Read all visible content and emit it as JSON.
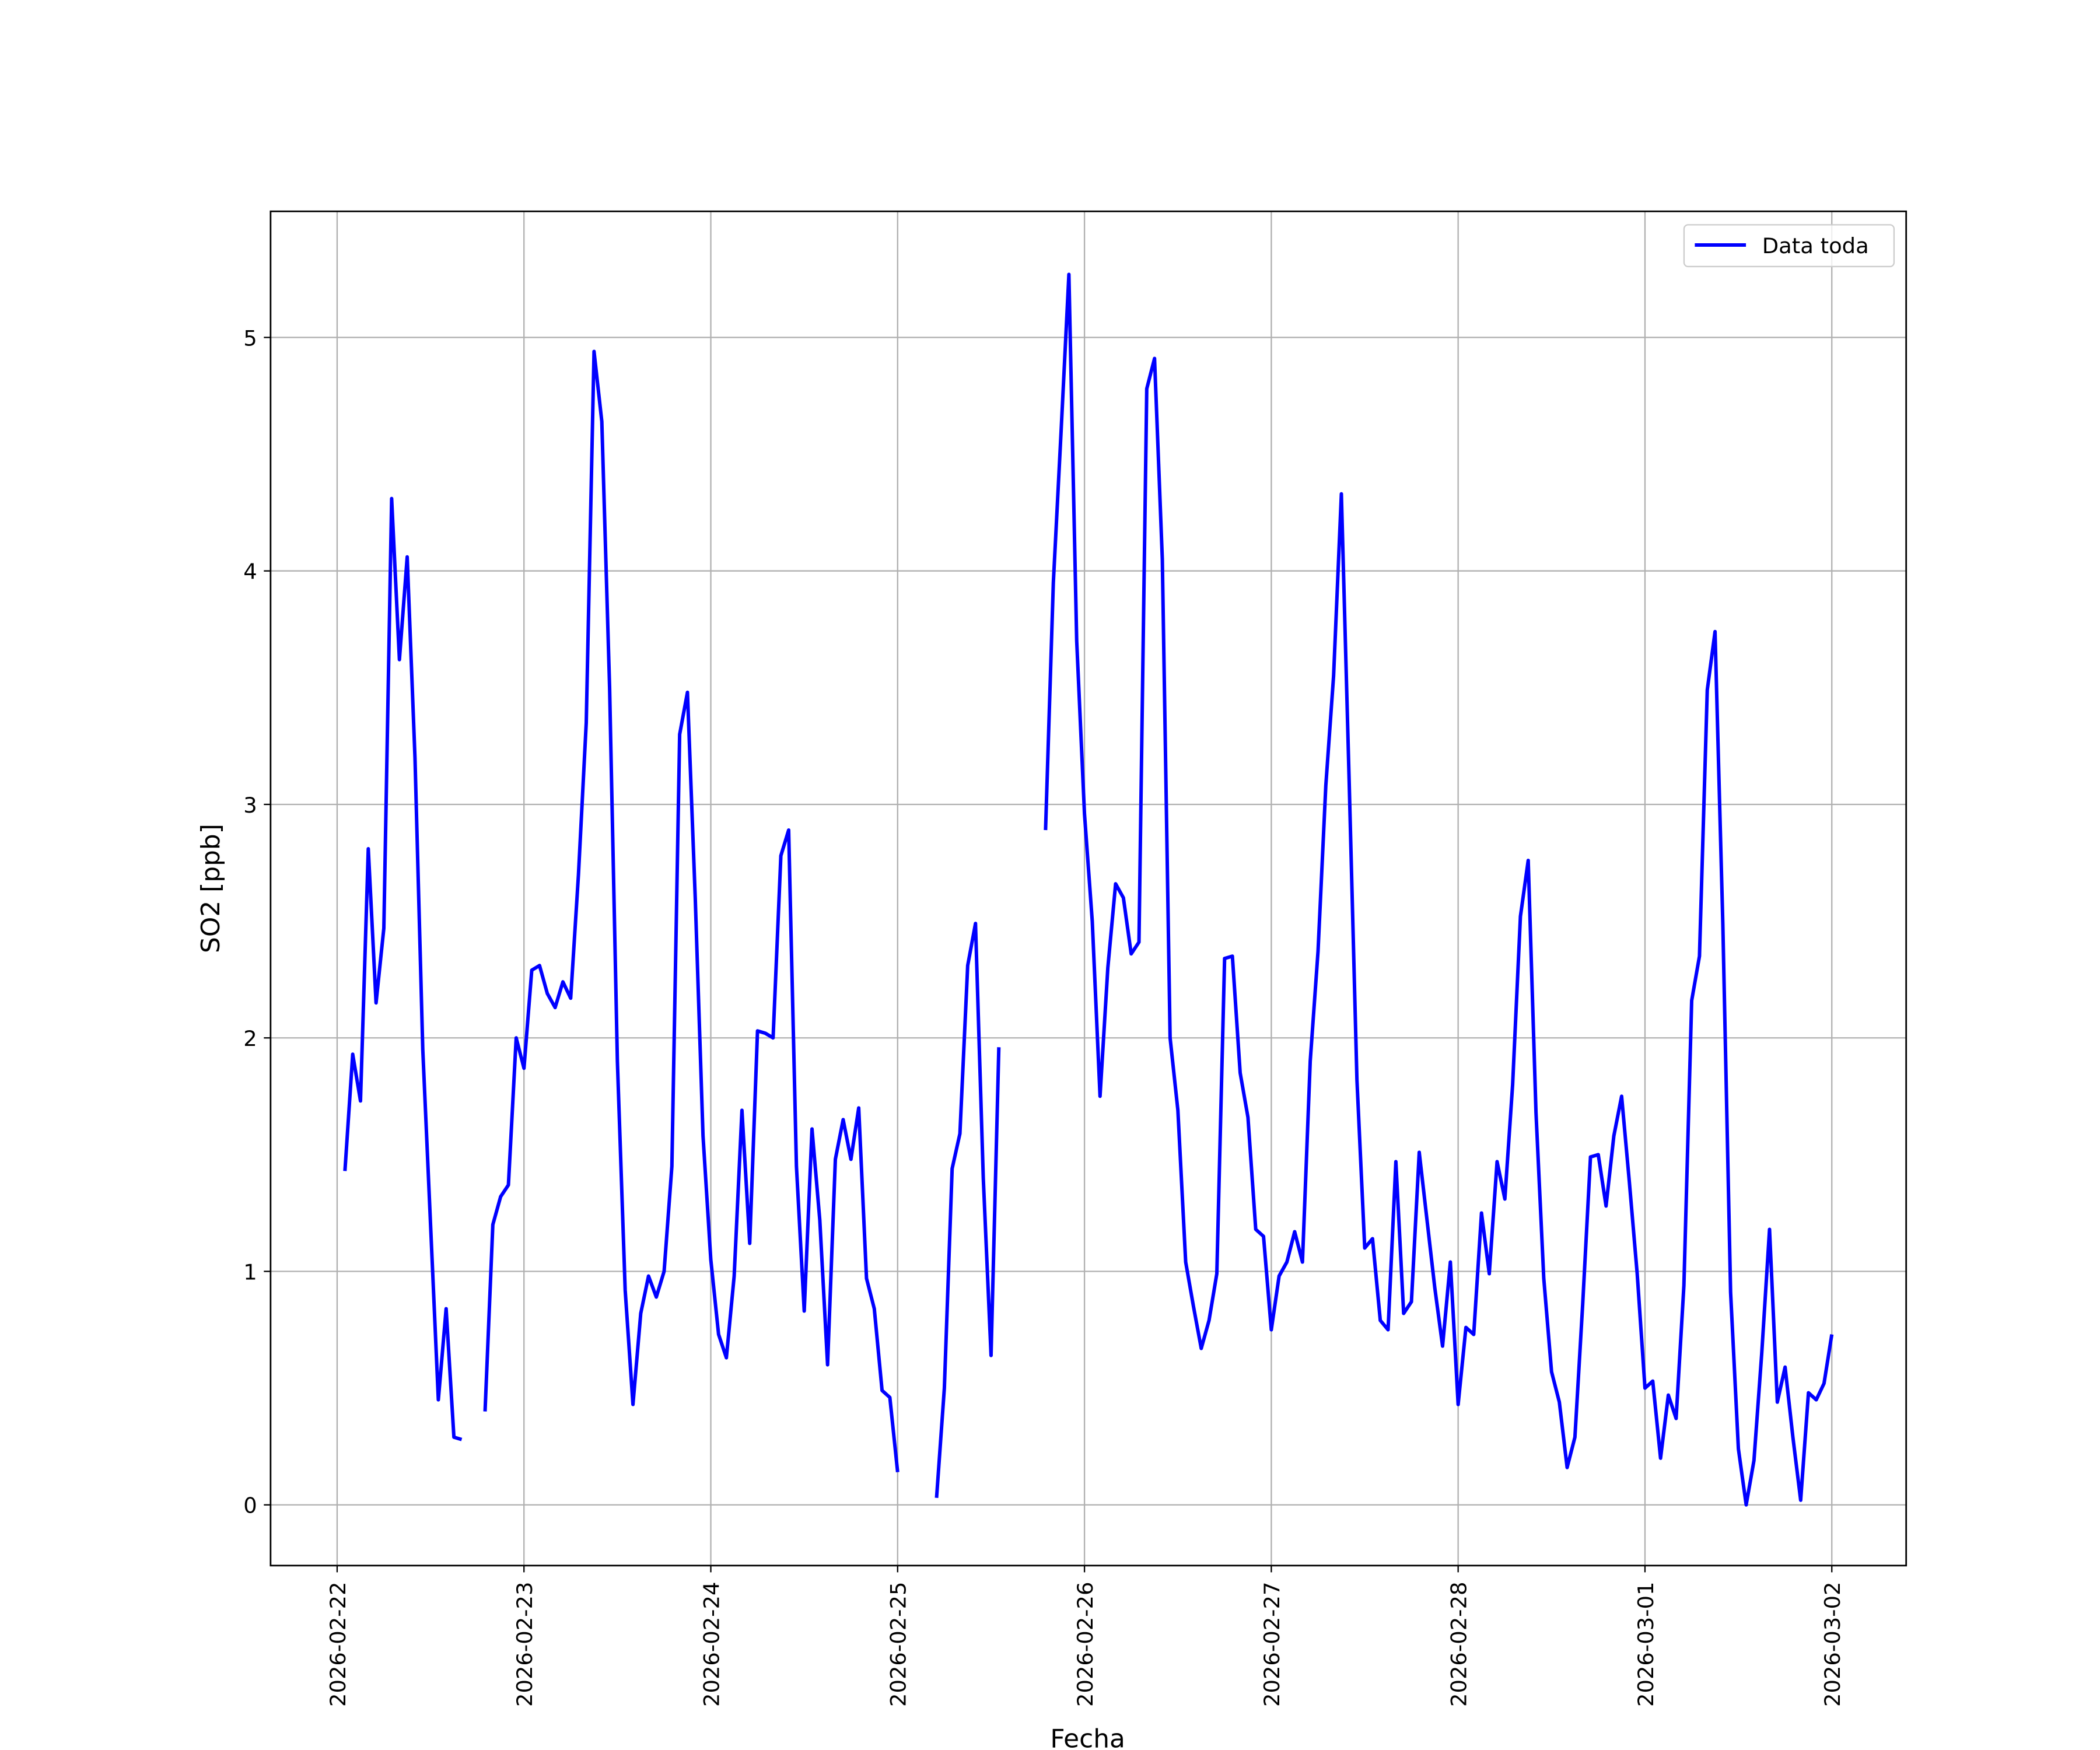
{
  "chart_data": {
    "type": "line",
    "xlabel": "Fecha",
    "ylabel": "SO2 [ppb]",
    "x": [
      "2026-02-22 01:00",
      "2026-02-22 02:00",
      "2026-02-22 03:00",
      "2026-02-22 04:00",
      "2026-02-22 05:00",
      "2026-02-22 06:00",
      "2026-02-22 07:00",
      "2026-02-22 08:00",
      "2026-02-22 09:00",
      "2026-02-22 10:00",
      "2026-02-22 11:00",
      "2026-02-22 12:00",
      "2026-02-22 13:00",
      "2026-02-22 14:00",
      "2026-02-22 15:00",
      "2026-02-22 16:00",
      "2026-02-22 17:00",
      "2026-02-22 18:00",
      "2026-02-22 19:00",
      "2026-02-22 20:00",
      "2026-02-22 21:00",
      "2026-02-22 22:00",
      "2026-02-22 23:00",
      "2026-02-23 00:00",
      "2026-02-23 01:00",
      "2026-02-23 02:00",
      "2026-02-23 03:00",
      "2026-02-23 04:00",
      "2026-02-23 05:00",
      "2026-02-23 06:00",
      "2026-02-23 07:00",
      "2026-02-23 08:00",
      "2026-02-23 09:00",
      "2026-02-23 10:00",
      "2026-02-23 11:00",
      "2026-02-23 12:00",
      "2026-02-23 13:00",
      "2026-02-23 14:00",
      "2026-02-23 15:00",
      "2026-02-23 16:00",
      "2026-02-23 17:00",
      "2026-02-23 18:00",
      "2026-02-23 19:00",
      "2026-02-23 20:00",
      "2026-02-23 21:00",
      "2026-02-23 22:00",
      "2026-02-23 23:00",
      "2026-02-24 00:00",
      "2026-02-24 01:00",
      "2026-02-24 02:00",
      "2026-02-24 03:00",
      "2026-02-24 04:00",
      "2026-02-24 05:00",
      "2026-02-24 06:00",
      "2026-02-24 07:00",
      "2026-02-24 08:00",
      "2026-02-24 09:00",
      "2026-02-24 10:00",
      "2026-02-24 11:00",
      "2026-02-24 12:00",
      "2026-02-24 13:00",
      "2026-02-24 14:00",
      "2026-02-24 15:00",
      "2026-02-24 16:00",
      "2026-02-24 17:00",
      "2026-02-24 18:00",
      "2026-02-24 19:00",
      "2026-02-24 20:00",
      "2026-02-24 21:00",
      "2026-02-24 22:00",
      "2026-02-24 23:00",
      "2026-02-25 00:00",
      "2026-02-25 01:00",
      "2026-02-25 02:00",
      "2026-02-25 03:00",
      "2026-02-25 04:00",
      "2026-02-25 05:00",
      "2026-02-25 06:00",
      "2026-02-25 07:00",
      "2026-02-25 08:00",
      "2026-02-25 09:00",
      "2026-02-25 10:00",
      "2026-02-25 11:00",
      "2026-02-25 12:00",
      "2026-02-25 13:00",
      "2026-02-25 14:00",
      "2026-02-25 15:00",
      "2026-02-25 16:00",
      "2026-02-25 17:00",
      "2026-02-25 18:00",
      "2026-02-25 19:00",
      "2026-02-25 20:00",
      "2026-02-25 21:00",
      "2026-02-25 22:00",
      "2026-02-25 23:00",
      "2026-02-26 00:00",
      "2026-02-26 01:00",
      "2026-02-26 02:00",
      "2026-02-26 03:00",
      "2026-02-26 04:00",
      "2026-02-26 05:00",
      "2026-02-26 06:00",
      "2026-02-26 07:00",
      "2026-02-26 08:00",
      "2026-02-26 09:00",
      "2026-02-26 10:00",
      "2026-02-26 11:00",
      "2026-02-26 12:00",
      "2026-02-26 13:00",
      "2026-02-26 14:00",
      "2026-02-26 15:00",
      "2026-02-26 16:00",
      "2026-02-26 17:00",
      "2026-02-26 18:00",
      "2026-02-26 19:00",
      "2026-02-26 20:00",
      "2026-02-26 21:00",
      "2026-02-26 22:00",
      "2026-02-26 23:00",
      "2026-02-27 00:00",
      "2026-02-27 01:00",
      "2026-02-27 02:00",
      "2026-02-27 03:00",
      "2026-02-27 04:00",
      "2026-02-27 05:00",
      "2026-02-27 06:00",
      "2026-02-27 07:00",
      "2026-02-27 08:00",
      "2026-02-27 09:00",
      "2026-02-27 10:00",
      "2026-02-27 11:00",
      "2026-02-27 12:00",
      "2026-02-27 13:00",
      "2026-02-27 14:00",
      "2026-02-27 15:00",
      "2026-02-27 16:00",
      "2026-02-27 17:00",
      "2026-02-27 18:00",
      "2026-02-27 19:00",
      "2026-02-27 20:00",
      "2026-02-27 21:00",
      "2026-02-27 22:00",
      "2026-02-27 23:00",
      "2026-02-28 00:00",
      "2026-02-28 01:00",
      "2026-02-28 02:00",
      "2026-02-28 03:00",
      "2026-02-28 04:00",
      "2026-02-28 05:00",
      "2026-02-28 06:00",
      "2026-02-28 07:00",
      "2026-02-28 08:00",
      "2026-02-28 09:00",
      "2026-02-28 10:00",
      "2026-02-28 11:00",
      "2026-02-28 12:00",
      "2026-02-28 13:00",
      "2026-02-28 14:00",
      "2026-02-28 15:00",
      "2026-02-28 16:00",
      "2026-02-28 17:00",
      "2026-02-28 18:00",
      "2026-02-28 19:00",
      "2026-02-28 20:00",
      "2026-02-28 21:00",
      "2026-02-28 22:00",
      "2026-02-28 23:00",
      "2026-03-01 00:00",
      "2026-03-01 01:00",
      "2026-03-01 02:00",
      "2026-03-01 03:00",
      "2026-03-01 04:00",
      "2026-03-01 05:00",
      "2026-03-01 06:00",
      "2026-03-01 07:00",
      "2026-03-01 08:00",
      "2026-03-01 09:00",
      "2026-03-01 10:00",
      "2026-03-01 11:00",
      "2026-03-01 12:00",
      "2026-03-01 13:00",
      "2026-03-01 14:00",
      "2026-03-01 15:00",
      "2026-03-01 16:00",
      "2026-03-01 17:00",
      "2026-03-01 18:00",
      "2026-03-01 19:00",
      "2026-03-01 20:00",
      "2026-03-01 21:00",
      "2026-03-01 22:00",
      "2026-03-01 23:00",
      "2026-03-02 00:00"
    ],
    "series": [
      {
        "name": "Data toda",
        "color": "#0000ff",
        "values": [
          1.43,
          1.93,
          1.73,
          2.81,
          2.15,
          2.47,
          4.31,
          3.62,
          4.06,
          3.2,
          1.95,
          1.2,
          0.45,
          0.84,
          0.29,
          0.28,
          null,
          null,
          0.4,
          1.2,
          1.32,
          1.37,
          2.0,
          1.87,
          2.29,
          2.31,
          2.19,
          2.13,
          2.24,
          2.17,
          2.7,
          3.35,
          4.94,
          4.64,
          3.5,
          1.9,
          0.92,
          0.43,
          0.82,
          0.98,
          0.89,
          1.0,
          1.45,
          3.3,
          3.48,
          2.6,
          1.58,
          1.05,
          0.73,
          0.63,
          0.98,
          1.69,
          1.12,
          2.03,
          2.02,
          2.0,
          2.78,
          2.89,
          1.45,
          0.83,
          1.61,
          1.22,
          0.6,
          1.48,
          1.65,
          1.48,
          1.7,
          0.97,
          0.84,
          0.49,
          0.46,
          0.14,
          null,
          null,
          null,
          null,
          0.03,
          0.5,
          1.44,
          1.59,
          2.31,
          2.49,
          1.4,
          0.64,
          1.96,
          null,
          null,
          null,
          null,
          null,
          2.89,
          3.95,
          4.6,
          5.27,
          3.7,
          2.96,
          2.5,
          1.75,
          2.3,
          2.66,
          2.6,
          2.36,
          2.41,
          4.78,
          4.91,
          4.05,
          2.0,
          1.69,
          1.04,
          0.85,
          0.67,
          0.79,
          0.99,
          2.34,
          2.35,
          1.85,
          1.66,
          1.18,
          1.15,
          0.75,
          0.98,
          1.04,
          1.17,
          1.04,
          1.9,
          2.37,
          3.08,
          3.55,
          4.33,
          3.1,
          1.82,
          1.1,
          1.14,
          0.79,
          0.75,
          1.47,
          0.82,
          0.87,
          1.51,
          1.22,
          0.93,
          0.68,
          1.04,
          0.43,
          0.76,
          0.73,
          1.25,
          0.99,
          1.47,
          1.31,
          1.8,
          2.52,
          2.76,
          1.68,
          0.97,
          0.57,
          0.44,
          0.16,
          0.29,
          0.86,
          1.49,
          1.5,
          1.28,
          1.58,
          1.75,
          1.38,
          0.99,
          0.5,
          0.53,
          0.2,
          0.47,
          0.37,
          0.94,
          2.16,
          2.35,
          3.49,
          3.74,
          2.49,
          0.91,
          0.24,
          0.0,
          0.19,
          0.65,
          1.18,
          0.44,
          0.59,
          0.29,
          0.02,
          0.48,
          0.45,
          0.52,
          0.73
        ]
      }
    ],
    "xlim": [
      "2026-02-21 15:27",
      "2026-03-02 09:33"
    ],
    "xticks": [
      "2026-02-22",
      "2026-02-23",
      "2026-02-24",
      "2026-02-25",
      "2026-02-26",
      "2026-02-27",
      "2026-02-28",
      "2026-03-01",
      "2026-03-02"
    ],
    "ylim": [
      -0.26,
      5.54
    ],
    "yticks": [
      0,
      1,
      2,
      3,
      4,
      5
    ],
    "grid": true,
    "legend": "upper right"
  }
}
